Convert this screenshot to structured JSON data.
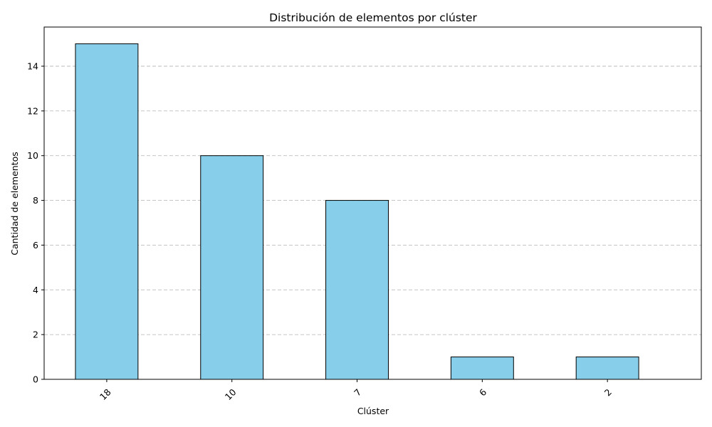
{
  "chart_data": {
    "type": "bar",
    "title": "Distribución de elementos por clúster",
    "xlabel": "Clúster",
    "ylabel": "Cantidad de elementos",
    "categories": [
      "18",
      "10",
      "7",
      "6",
      "2"
    ],
    "values": [
      15,
      10,
      8,
      1,
      1
    ],
    "ylim": [
      0,
      15.75
    ],
    "yticks": [
      0,
      2,
      4,
      6,
      8,
      10,
      12,
      14
    ],
    "grid": "y-dashed",
    "bar_color": "#87CEEB",
    "edge_color": "#000000",
    "xtick_rotation": 45
  }
}
